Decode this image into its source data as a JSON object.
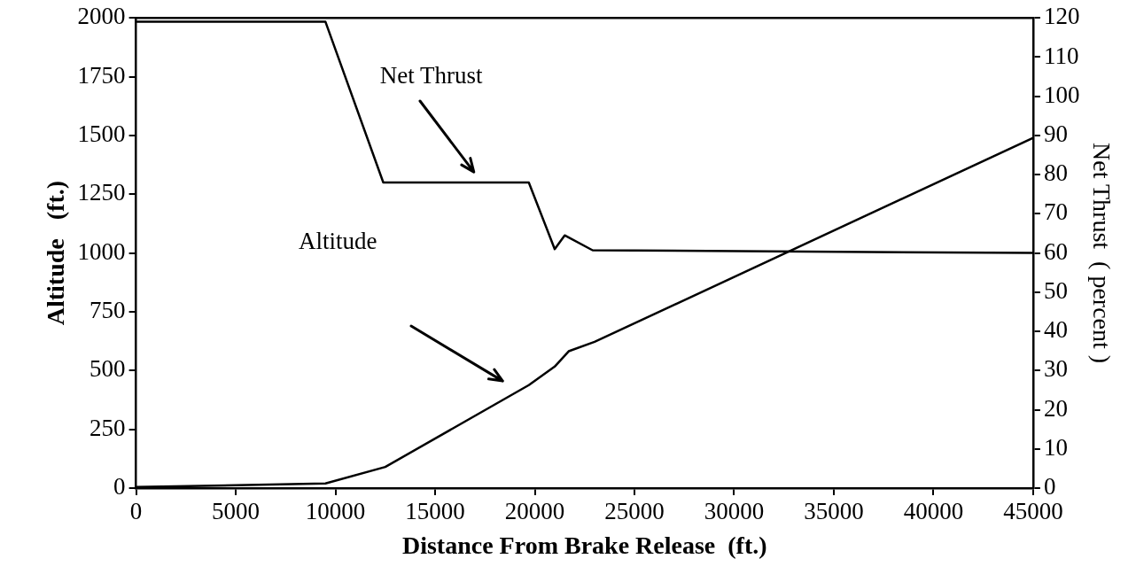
{
  "chart_data": {
    "type": "line",
    "xlabel": "Distance From Brake Release  (ft.)",
    "ylabel": "Altitude   (ft.)",
    "y2label": "Net Thrust  ( percent )",
    "xlim": [
      0,
      45000
    ],
    "xticks": [
      0,
      5000,
      10000,
      15000,
      20000,
      25000,
      30000,
      35000,
      40000,
      45000
    ],
    "ylim": [
      0,
      2000
    ],
    "yticks": [
      0,
      250,
      500,
      750,
      1000,
      1250,
      1500,
      1750,
      2000
    ],
    "y2lim": [
      0,
      120
    ],
    "y2ticks": [
      0,
      10,
      20,
      30,
      40,
      50,
      60,
      70,
      80,
      90,
      100,
      110,
      120
    ],
    "grid": false,
    "legend": false,
    "marker": "none",
    "line_style": "solid",
    "series": [
      {
        "color": "#000000",
        "x": [
          0,
          5000,
          9500,
          12500,
          19700,
          21000,
          21700,
          23000,
          45000
        ],
        "values": [
          5,
          12,
          20,
          90,
          438,
          517,
          582,
          622,
          1490
        ]
      },
      {
        "color": "#000000",
        "axis": "y2",
        "x": [
          0,
          9500,
          12400,
          19700,
          21000,
          21500,
          22900,
          45000
        ],
        "values": [
          119,
          119,
          78,
          78,
          61,
          64.5,
          60.7,
          60
        ]
      }
    ],
    "annotations": [
      "Net Thrust",
      "Altitude"
    ]
  }
}
